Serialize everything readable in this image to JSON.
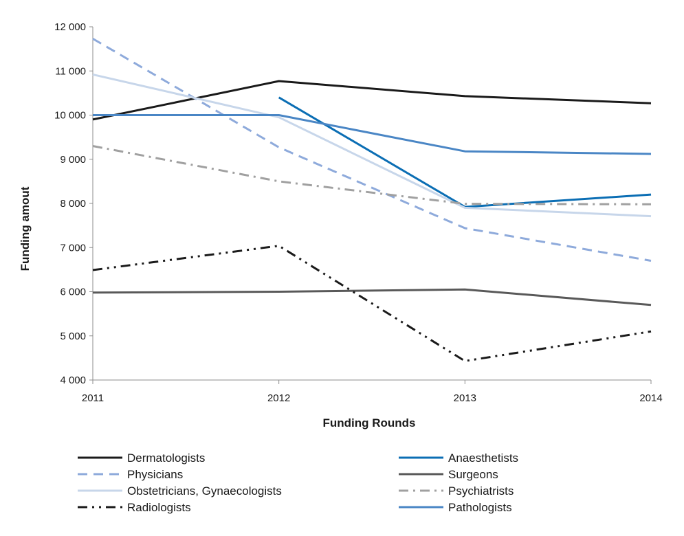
{
  "chart_data": {
    "type": "line",
    "title": "",
    "xlabel": "Funding Rounds",
    "ylabel": "Funding amout",
    "x": [
      "2011",
      "2012",
      "2013",
      "2014"
    ],
    "ylim": [
      4000,
      12000
    ],
    "yticks": [
      4000,
      5000,
      6000,
      7000,
      8000,
      9000,
      10000,
      11000,
      12000
    ],
    "ytick_labels": [
      "4 000",
      "5 000",
      "6 000",
      "7 000",
      "8 000",
      "9 000",
      "10 000",
      "11 000",
      "12 000"
    ],
    "grid": false,
    "legend_position": "bottom",
    "series": [
      {
        "name": "Dermatologists",
        "values": [
          9900,
          10770,
          10430,
          10270
        ],
        "color": "#1a1a1a",
        "dash": "solid"
      },
      {
        "name": "Anaesthetists",
        "values": [
          null,
          10400,
          7920,
          8200
        ],
        "color": "#0b6eb4",
        "dash": "solid"
      },
      {
        "name": "Physicians",
        "values": [
          11730,
          9270,
          7440,
          6700
        ],
        "color": "#8eaadb",
        "dash": "dash"
      },
      {
        "name": "Surgeons",
        "values": [
          5980,
          6000,
          6050,
          5700
        ],
        "color": "#595959",
        "dash": "solid"
      },
      {
        "name": "Obstetricians, Gynaecologists",
        "values": [
          10920,
          9950,
          7900,
          7710
        ],
        "color": "#c7d6ea",
        "dash": "solid"
      },
      {
        "name": "Psychiatrists",
        "values": [
          9300,
          8500,
          7990,
          7980
        ],
        "color": "#a0a0a0",
        "dash": "dashdot"
      },
      {
        "name": "Radiologists",
        "values": [
          6490,
          7040,
          4430,
          5100
        ],
        "color": "#1a1a1a",
        "dash": "dashdotdot"
      },
      {
        "name": "Pathologists",
        "values": [
          10000,
          10000,
          9180,
          9120
        ],
        "color": "#4a86c5",
        "dash": "solid"
      }
    ]
  }
}
